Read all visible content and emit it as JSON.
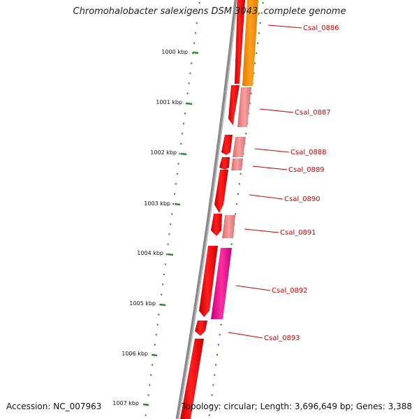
{
  "title": "Chromohalobacter salexigens DSM 3043, complete genome",
  "footer": {
    "accession": "Accession: NC_007963",
    "summary": "Topology: circular; Length: 3,696,649 bp; Genes: 3,388"
  },
  "kbp_labels": [
    "1000 kbp",
    "1001 kbp",
    "1002 kbp",
    "1003 kbp",
    "1004 kbp",
    "1005 kbp",
    "1006 kbp",
    "1007 kbp"
  ],
  "gene_labels": [
    "Csal_0886",
    "Csal_0887",
    "Csal_0888",
    "Csal_0889",
    "Csal_0890",
    "Csal_0891",
    "Csal_0892",
    "Csal_0893"
  ],
  "colors": {
    "backbone": "#888888",
    "tick": "#2e8b2e",
    "cds": "#ff0000",
    "cds_light": "#f08080",
    "orange": "#ff8c00",
    "magenta": "#ff1493",
    "label": "#cc0000"
  }
}
